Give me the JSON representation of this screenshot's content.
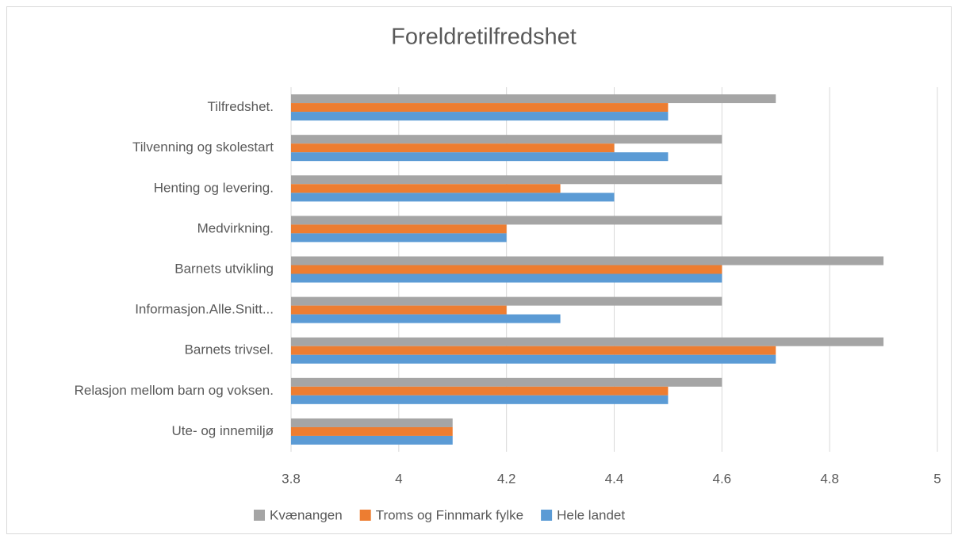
{
  "chart_data": {
    "type": "hbar",
    "title": "Foreldretilfredshet",
    "categories": [
      "Tilfredshet.",
      "Tilvenning og skolestart",
      "Henting og levering.",
      "Medvirkning.",
      "Barnets utvikling",
      "Informasjon.Alle.Snitt...",
      "Barnets trivsel.",
      "Relasjon mellom barn og voksen.",
      "Ute- og innemiljø"
    ],
    "series": [
      {
        "name": "Kvænangen",
        "color": "#a5a5a5",
        "values": [
          4.7,
          4.6,
          4.6,
          4.6,
          4.9,
          4.6,
          4.9,
          4.6,
          4.1
        ]
      },
      {
        "name": "Troms og Finnmark fylke",
        "color": "#ed7d31",
        "values": [
          4.5,
          4.4,
          4.3,
          4.2,
          4.6,
          4.2,
          4.7,
          4.5,
          4.1
        ]
      },
      {
        "name": "Hele landet",
        "color": "#5b9bd5",
        "values": [
          4.5,
          4.5,
          4.4,
          4.2,
          4.6,
          4.3,
          4.7,
          4.5,
          4.1
        ]
      }
    ],
    "xlim": [
      3.8,
      5
    ],
    "xticks": [
      3.8,
      4,
      4.2,
      4.4,
      4.6,
      4.8,
      5
    ],
    "grid": true,
    "legend": "bottom"
  }
}
